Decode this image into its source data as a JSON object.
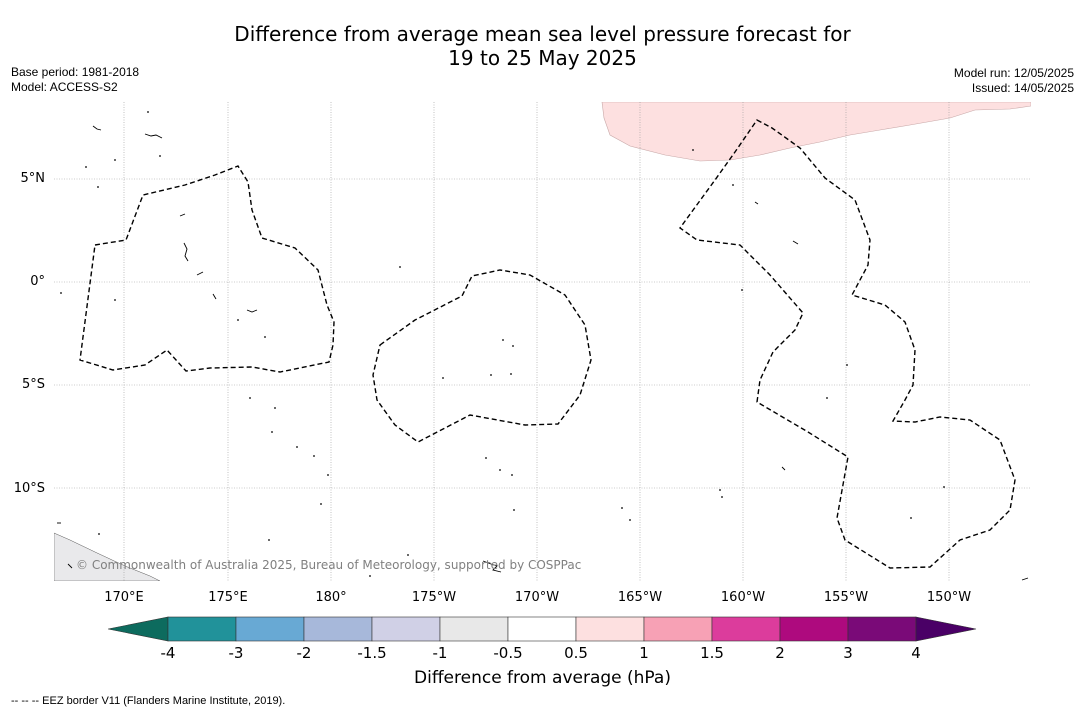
{
  "title_line1": "Difference from average mean sea level pressure forecast for",
  "title_line2": "19 to 25 May 2025",
  "meta": {
    "base_period": "Base period: 1981-2018",
    "model": "Model: ACCESS-S2",
    "model_run": "Model run: 12/05/2025",
    "issued": "Issued: 14/05/2025"
  },
  "lat_labels": [
    "5°N",
    "0°",
    "5°S",
    "10°S"
  ],
  "lon_labels": [
    "170°E",
    "175°E",
    "180°",
    "175°W",
    "170°W",
    "165°W",
    "160°W",
    "155°W",
    "150°W"
  ],
  "copyright": "© Commonwealth of Australia 2025, Bureau of Meteorology, supported by COSPPac",
  "colorbar": {
    "label": "Difference from average (hPa)",
    "ticks": [
      "-4",
      "-3",
      "-2",
      "-1.5",
      "-1",
      "-0.5",
      "0.5",
      "1",
      "1.5",
      "2",
      "3",
      "4"
    ],
    "colors": {
      "below_min": "#0d6b5e",
      "bins": [
        "#21929a",
        "#68a9d4",
        "#a7b8da",
        "#d0d0e6",
        "#e8e8e8",
        "#ffffff",
        "#fde0e0",
        "#f7a1b5",
        "#dc3c9c",
        "#ae0a7e",
        "#7a0a78"
      ],
      "above_max": "#4a0066"
    }
  },
  "anomaly_fill_color": "#fde0e0",
  "land_color": "#e9e9eb",
  "legend_text": "--  --  -- EEZ border V11 (Flanders Marine Institute, 2019)."
}
